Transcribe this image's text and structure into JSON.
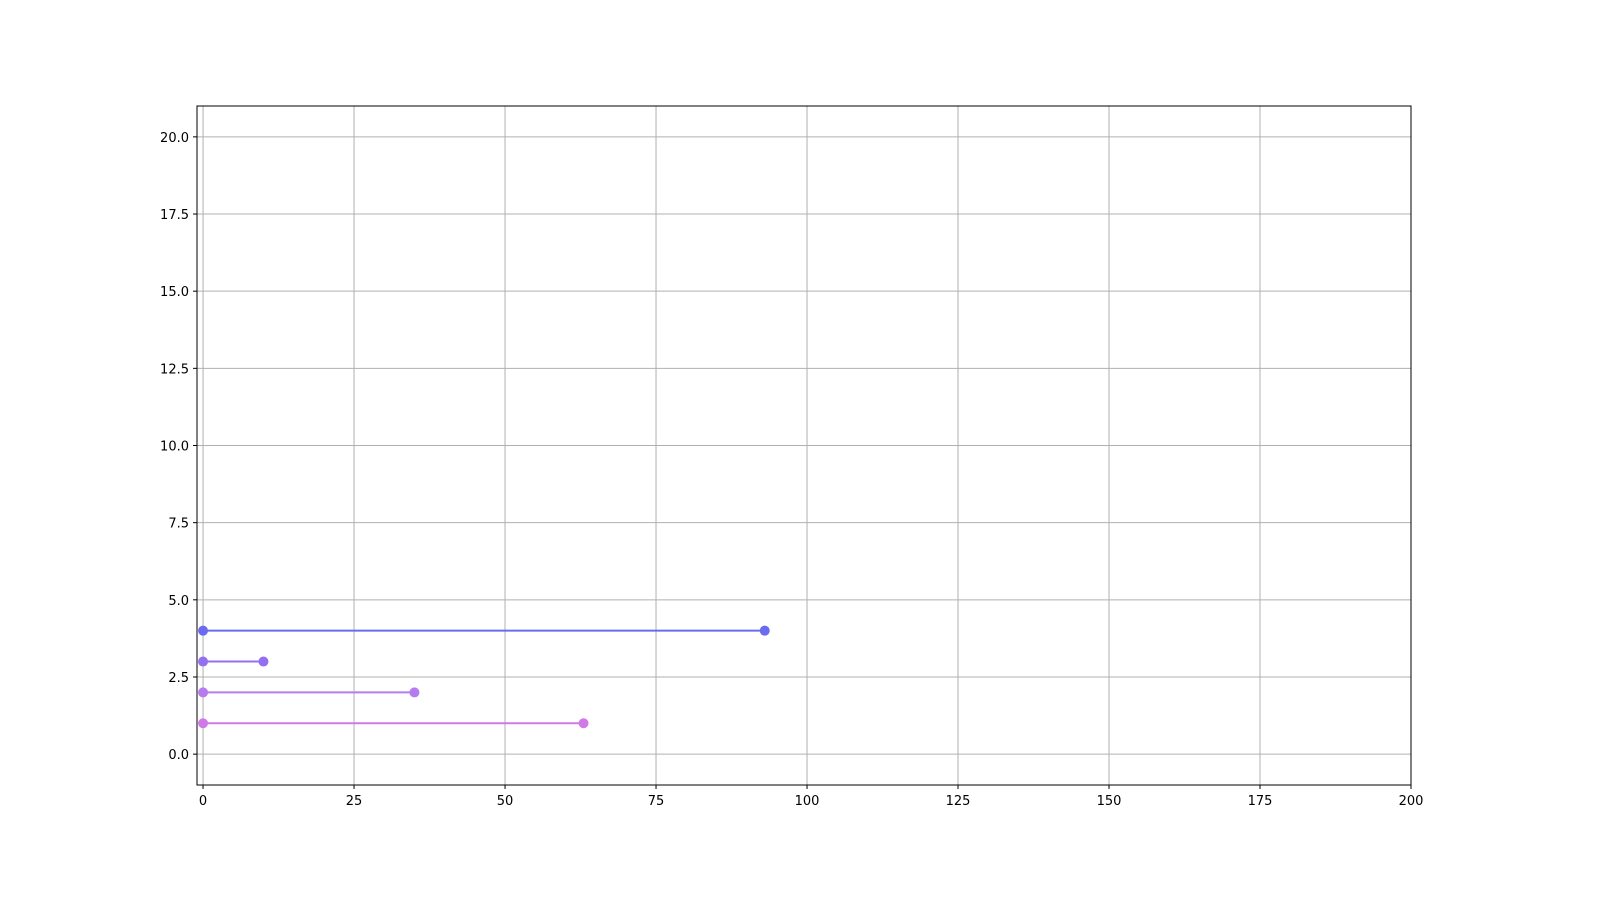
{
  "chart_data": {
    "type": "line",
    "title": "",
    "xlabel": "",
    "ylabel": "",
    "xlim": [
      -1,
      200
    ],
    "ylim": [
      -1,
      21
    ],
    "xticks": [
      0,
      25,
      50,
      75,
      100,
      125,
      150,
      175,
      200
    ],
    "yticks": [
      0.0,
      2.5,
      5.0,
      7.5,
      10.0,
      12.5,
      15.0,
      17.5,
      20.0
    ],
    "grid": true,
    "series": [
      {
        "x": [
          0,
          63
        ],
        "y": [
          1,
          1
        ],
        "color": "#d07ae8"
      },
      {
        "x": [
          0,
          35
        ],
        "y": [
          2,
          2
        ],
        "color": "#b57bef"
      },
      {
        "x": [
          0,
          10
        ],
        "y": [
          3,
          3
        ],
        "color": "#9370f0"
      },
      {
        "x": [
          0,
          93
        ],
        "y": [
          4,
          4
        ],
        "color": "#6b6bf0"
      }
    ]
  }
}
